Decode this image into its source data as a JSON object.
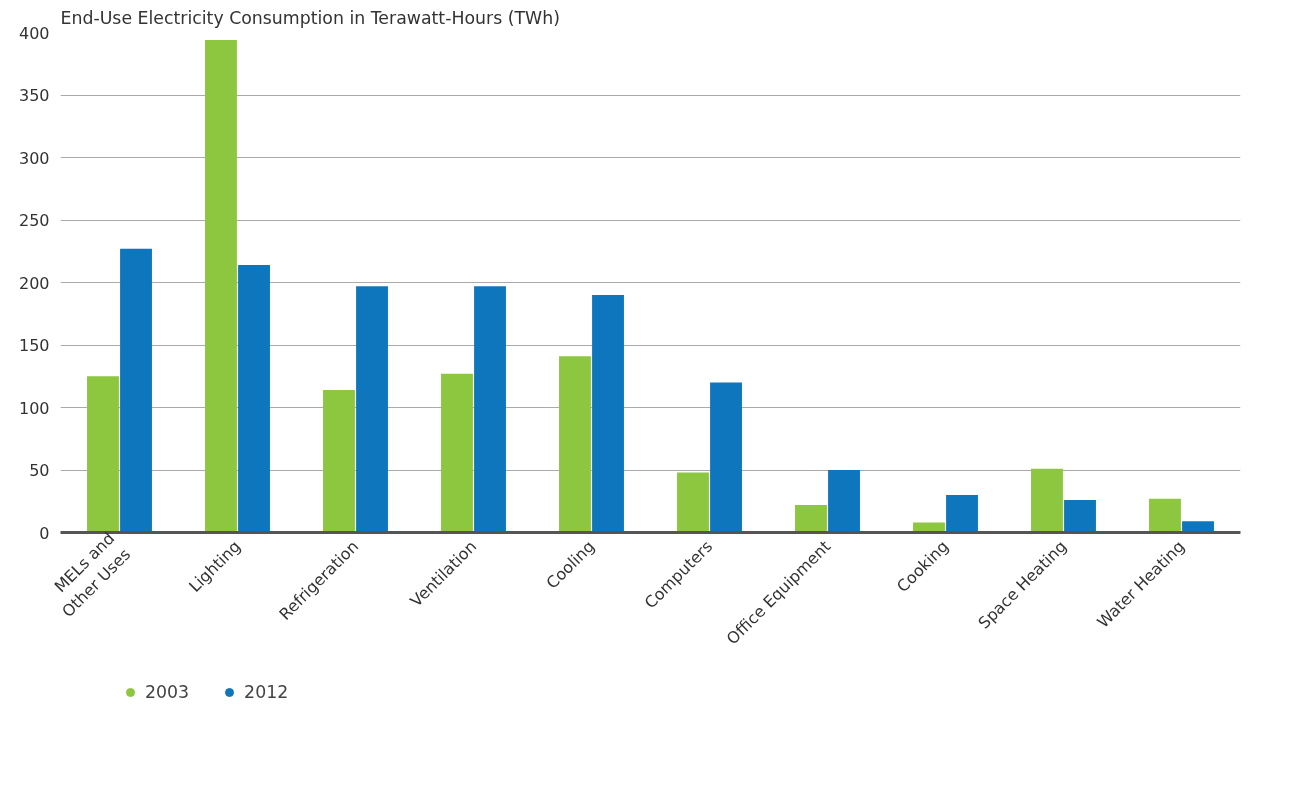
{
  "chart_data": {
    "type": "bar",
    "title": "End-Use Electricity Consumption in Terawatt-Hours (TWh)",
    "categories": [
      "MELs and\nOther Uses",
      "Lighting",
      "Refrigeration",
      "Ventilation",
      "Cooling",
      "Computers",
      "Office Equipment",
      "Cooking",
      "Space Heating",
      "Water Heating"
    ],
    "series": [
      {
        "name": "2003",
        "color": "#8dc63f",
        "values": [
          125,
          394,
          114,
          127,
          141,
          48,
          22,
          8,
          51,
          27
        ]
      },
      {
        "name": "2012",
        "color": "#0e76bc",
        "values": [
          227,
          214,
          197,
          197,
          190,
          120,
          50,
          30,
          26,
          9
        ]
      }
    ],
    "ylim": [
      0,
      400
    ],
    "yticks": [
      0,
      50,
      100,
      150,
      200,
      250,
      300,
      350,
      400
    ],
    "grid": "y",
    "legend": "bottom left"
  }
}
